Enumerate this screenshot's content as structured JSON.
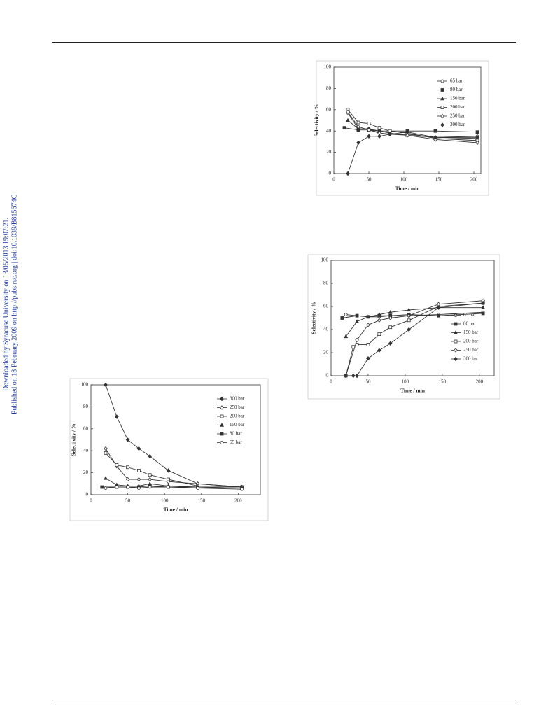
{
  "sidebar": {
    "downloaded": "Downloaded by Syracuse University on 13/05/2013 19:07:21.",
    "published": "Published on 18 February 2009 on http://pubs.rsc.org | doi:10.1039/B815674C"
  },
  "chart_data": [
    {
      "type": "line",
      "xlabel": "Time / min",
      "ylabel": "Selectivity / %",
      "xlim": [
        0,
        210
      ],
      "ylim": [
        0,
        100
      ],
      "xticks": [
        0,
        50,
        100,
        150,
        200
      ],
      "yticks": [
        0,
        20,
        40,
        60,
        80,
        100
      ],
      "legend": "upper right",
      "series": [
        {
          "name": "65 bar",
          "marker": "circle",
          "filled": false,
          "color": "#333333",
          "x": [
            20,
            35,
            50,
            65,
            80,
            105,
            145,
            205
          ],
          "values": [
            57,
            42,
            42,
            38,
            37,
            37,
            34,
            35
          ]
        },
        {
          "name": "80 bar",
          "marker": "square",
          "filled": true,
          "color": "#333333",
          "x": [
            15,
            35,
            50,
            65,
            80,
            105,
            145,
            205
          ],
          "values": [
            43,
            41,
            41,
            40,
            40,
            40,
            40,
            39
          ]
        },
        {
          "name": "150 bar",
          "marker": "triangle",
          "filled": true,
          "color": "#333333",
          "x": [
            20,
            35,
            50,
            65,
            80,
            105,
            145,
            205
          ],
          "values": [
            50,
            42,
            42,
            40,
            38,
            36,
            34,
            33
          ]
        },
        {
          "name": "200 bar",
          "marker": "square",
          "filled": false,
          "color": "#333333",
          "x": [
            20,
            35,
            50,
            65,
            80,
            105,
            145,
            205
          ],
          "values": [
            60,
            48,
            47,
            43,
            40,
            38,
            33,
            31
          ]
        },
        {
          "name": "250 bar",
          "marker": "diamond",
          "filled": false,
          "color": "#333333",
          "x": [
            20,
            35,
            50,
            65,
            80,
            105,
            145,
            205
          ],
          "values": [
            58,
            44,
            41,
            38,
            37,
            36,
            32,
            29
          ]
        },
        {
          "name": "300 bar",
          "marker": "diamond",
          "filled": true,
          "color": "#333333",
          "x": [
            20,
            35,
            50,
            65,
            80,
            105,
            145,
            205
          ],
          "values": [
            0,
            29,
            35,
            35,
            37,
            39,
            34,
            34
          ]
        }
      ]
    },
    {
      "type": "line",
      "xlabel": "Time / min",
      "ylabel": "Selectivity / %",
      "xlim": [
        0,
        220
      ],
      "ylim": [
        0,
        100
      ],
      "xticks": [
        0,
        50,
        100,
        150,
        200
      ],
      "yticks": [
        0,
        20,
        40,
        60,
        80,
        100
      ],
      "legend": "center right",
      "series": [
        {
          "name": "65 bar",
          "marker": "circle",
          "filled": false,
          "color": "#333333",
          "x": [
            20,
            35,
            50,
            65,
            80,
            105,
            145,
            205
          ],
          "values": [
            53,
            52,
            51,
            51,
            52,
            52,
            53,
            55
          ]
        },
        {
          "name": "80 bar",
          "marker": "square",
          "filled": true,
          "color": "#333333",
          "x": [
            15,
            35,
            50,
            65,
            80,
            105,
            145,
            205
          ],
          "values": [
            50,
            52,
            51,
            52,
            52,
            53,
            52,
            54
          ]
        },
        {
          "name": "150 bar",
          "marker": "triangle",
          "filled": true,
          "color": "#333333",
          "x": [
            20,
            35,
            50,
            65,
            80,
            105,
            145,
            205
          ],
          "values": [
            34,
            47,
            51,
            53,
            55,
            57,
            59,
            59
          ]
        },
        {
          "name": "200 bar",
          "marker": "square",
          "filled": false,
          "color": "#333333",
          "x": [
            20,
            30,
            35,
            50,
            65,
            80,
            105,
            145,
            205
          ],
          "values": [
            0,
            25,
            27,
            27,
            36,
            42,
            48,
            60,
            63
          ]
        },
        {
          "name": "250 bar",
          "marker": "diamond",
          "filled": false,
          "color": "#333333",
          "x": [
            20,
            35,
            50,
            65,
            80,
            105,
            145,
            205
          ],
          "values": [
            0,
            31,
            44,
            48,
            50,
            52,
            62,
            65
          ]
        },
        {
          "name": "300 bar",
          "marker": "diamond",
          "filled": true,
          "color": "#333333",
          "x": [
            20,
            30,
            35,
            50,
            65,
            80,
            105,
            145,
            205
          ],
          "values": [
            0,
            0,
            0,
            15,
            22,
            28,
            40,
            59,
            63
          ]
        }
      ]
    },
    {
      "type": "line",
      "xlabel": "Time / min",
      "ylabel": "Selectivity / %",
      "xlim": [
        0,
        230
      ],
      "ylim": [
        0,
        100
      ],
      "xticks": [
        0,
        50,
        100,
        150,
        200
      ],
      "yticks": [
        0,
        20,
        40,
        60,
        80,
        100
      ],
      "legend": "upper right",
      "series": [
        {
          "name": "300 bar",
          "marker": "diamond",
          "filled": true,
          "color": "#333333",
          "x": [
            20,
            35,
            50,
            65,
            80,
            105,
            145,
            205
          ],
          "values": [
            100,
            71,
            50,
            42,
            35,
            22,
            10,
            7
          ]
        },
        {
          "name": "250 bar",
          "marker": "diamond",
          "filled": false,
          "color": "#333333",
          "x": [
            20,
            35,
            50,
            65,
            80,
            105,
            145,
            205
          ],
          "values": [
            42,
            26,
            14,
            14,
            14,
            12,
            10,
            7
          ]
        },
        {
          "name": "200 bar",
          "marker": "square",
          "filled": false,
          "color": "#333333",
          "x": [
            20,
            35,
            50,
            65,
            80,
            105,
            145,
            205
          ],
          "values": [
            38,
            27,
            25,
            22,
            18,
            14,
            8,
            7
          ]
        },
        {
          "name": "150 bar",
          "marker": "triangle",
          "filled": true,
          "color": "#333333",
          "x": [
            20,
            35,
            50,
            65,
            80,
            105,
            145,
            205
          ],
          "values": [
            15,
            9,
            8,
            8,
            10,
            8,
            7,
            6
          ]
        },
        {
          "name": "80 bar",
          "marker": "square",
          "filled": true,
          "color": "#333333",
          "x": [
            15,
            35,
            50,
            65,
            80,
            105,
            145,
            205
          ],
          "values": [
            7,
            7,
            7,
            7,
            8,
            7,
            7,
            6
          ]
        },
        {
          "name": "65 bar",
          "marker": "circle",
          "filled": false,
          "color": "#333333",
          "x": [
            20,
            35,
            50,
            65,
            80,
            105,
            145,
            205
          ],
          "values": [
            6,
            7,
            7,
            6,
            7,
            7,
            6,
            5
          ]
        }
      ]
    }
  ]
}
